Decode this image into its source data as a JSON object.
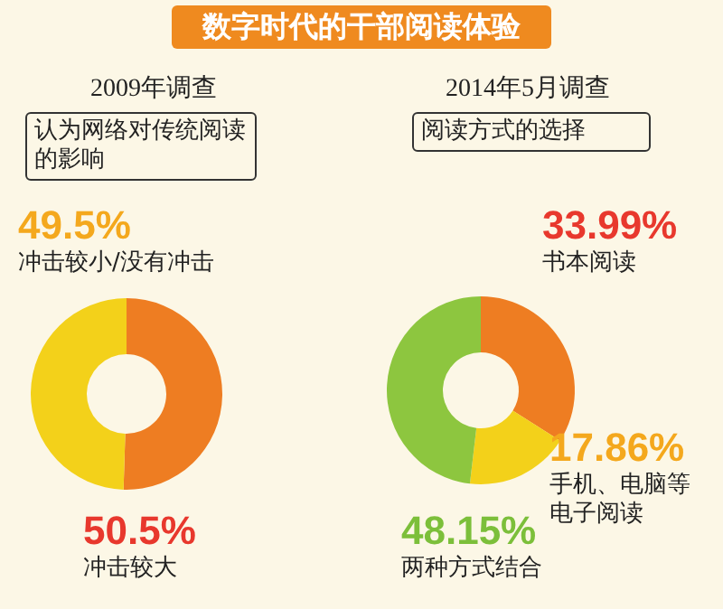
{
  "chart_data": [
    {
      "type": "other",
      "title": "数字时代的干部阅读体验"
    },
    {
      "type": "donut",
      "title": "2009年调查",
      "subtitle": "认为网络对传统阅读的影响",
      "categories": [
        "冲击较大",
        "冲击较小/没有冲击"
      ],
      "values": [
        50.5,
        49.5
      ],
      "value_labels": [
        "50.5%",
        "49.5%"
      ],
      "colors": [
        "#ee7d22",
        "#f3d11a"
      ]
    },
    {
      "type": "donut",
      "title": "2014年5月调查",
      "subtitle": "阅读方式的选择",
      "categories": [
        "书本阅读",
        "手机、电脑等电子阅读",
        "两种方式结合"
      ],
      "values": [
        33.99,
        17.86,
        48.15
      ],
      "value_labels": [
        "33.99%",
        "17.86%",
        "48.15%"
      ],
      "colors": [
        "#ee7d22",
        "#f3d11a",
        "#8dc63f"
      ]
    }
  ]
}
